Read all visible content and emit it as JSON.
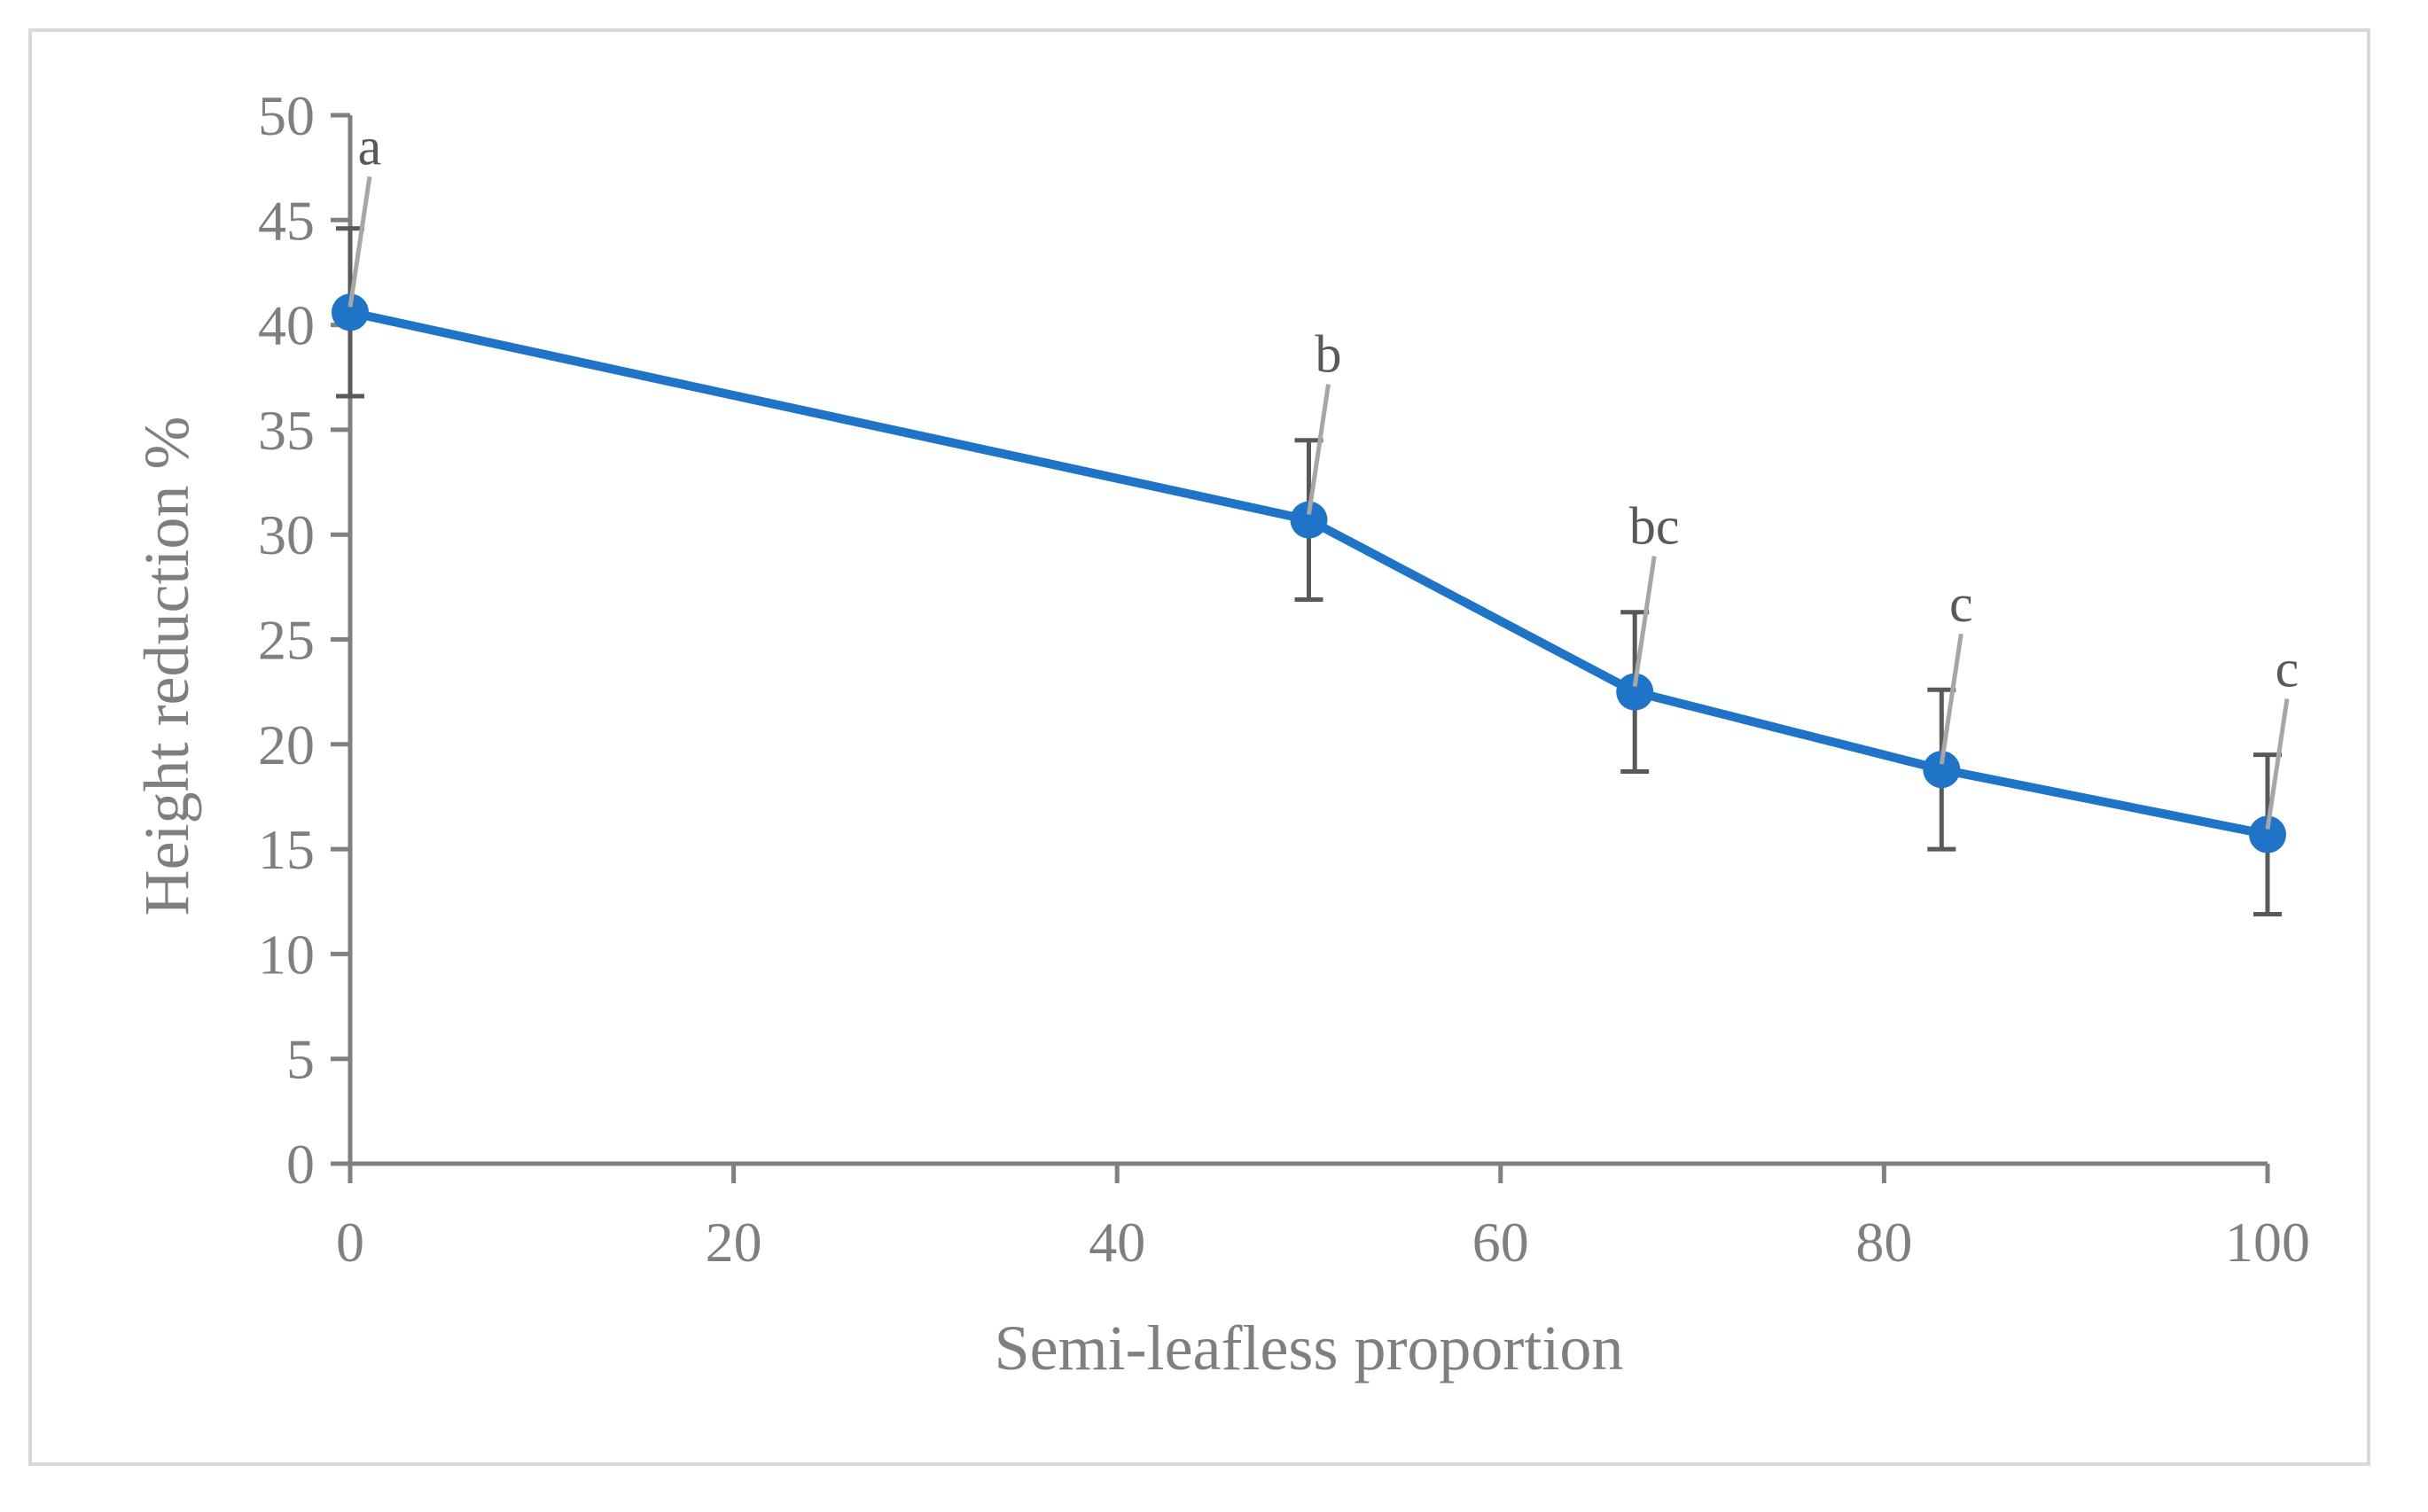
{
  "chart_data": {
    "type": "line",
    "title": "",
    "xlabel": "Semi-leafless proportion",
    "ylabel": "Height reduction %",
    "xlim": [
      0,
      100
    ],
    "ylim": [
      0,
      50
    ],
    "xticks": [
      0,
      20,
      40,
      60,
      80,
      100
    ],
    "yticks": [
      0,
      5,
      10,
      15,
      20,
      25,
      30,
      35,
      40,
      45,
      50
    ],
    "grid": false,
    "series": [
      {
        "name": "Height reduction",
        "color": "#1f74c7",
        "x": [
          0,
          50,
          67,
          83,
          100
        ],
        "values": [
          40.6,
          30.7,
          22.5,
          18.8,
          15.7
        ],
        "error": [
          4.0,
          3.8,
          3.8,
          3.8,
          3.8
        ],
        "labels": [
          "a",
          "b",
          "bc",
          "c",
          "c"
        ]
      }
    ]
  },
  "colors": {
    "axis": "#808080",
    "error_bar": "#595959",
    "leader_line": "#a6a6a6",
    "frame": "#d9d9d9"
  }
}
